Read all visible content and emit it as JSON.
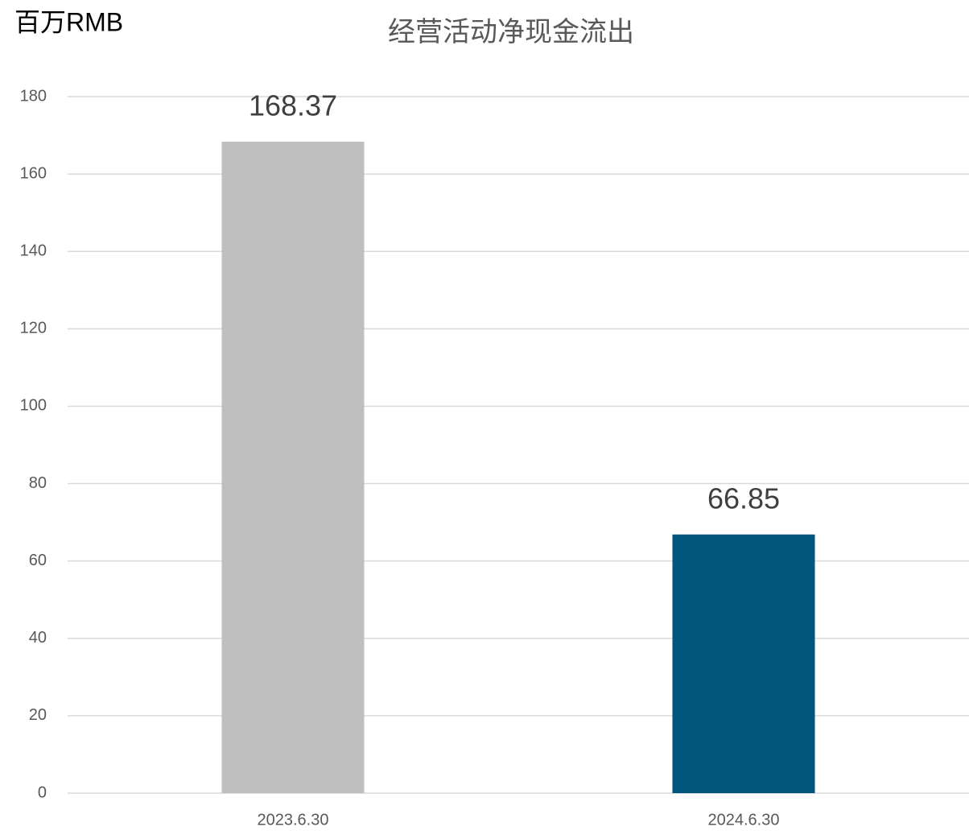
{
  "chart_data": {
    "type": "bar",
    "title": "经营活动净现金流出",
    "y_axis_label": "百万RMB",
    "categories": [
      "2023.6.30",
      "2024.6.30"
    ],
    "values": [
      168.37,
      66.85
    ],
    "colors": [
      "#bfbfbf",
      "#00567d"
    ],
    "ylim": [
      0,
      180
    ],
    "yticks": [
      0,
      20,
      40,
      60,
      80,
      100,
      120,
      140,
      160,
      180
    ],
    "grid": true
  }
}
